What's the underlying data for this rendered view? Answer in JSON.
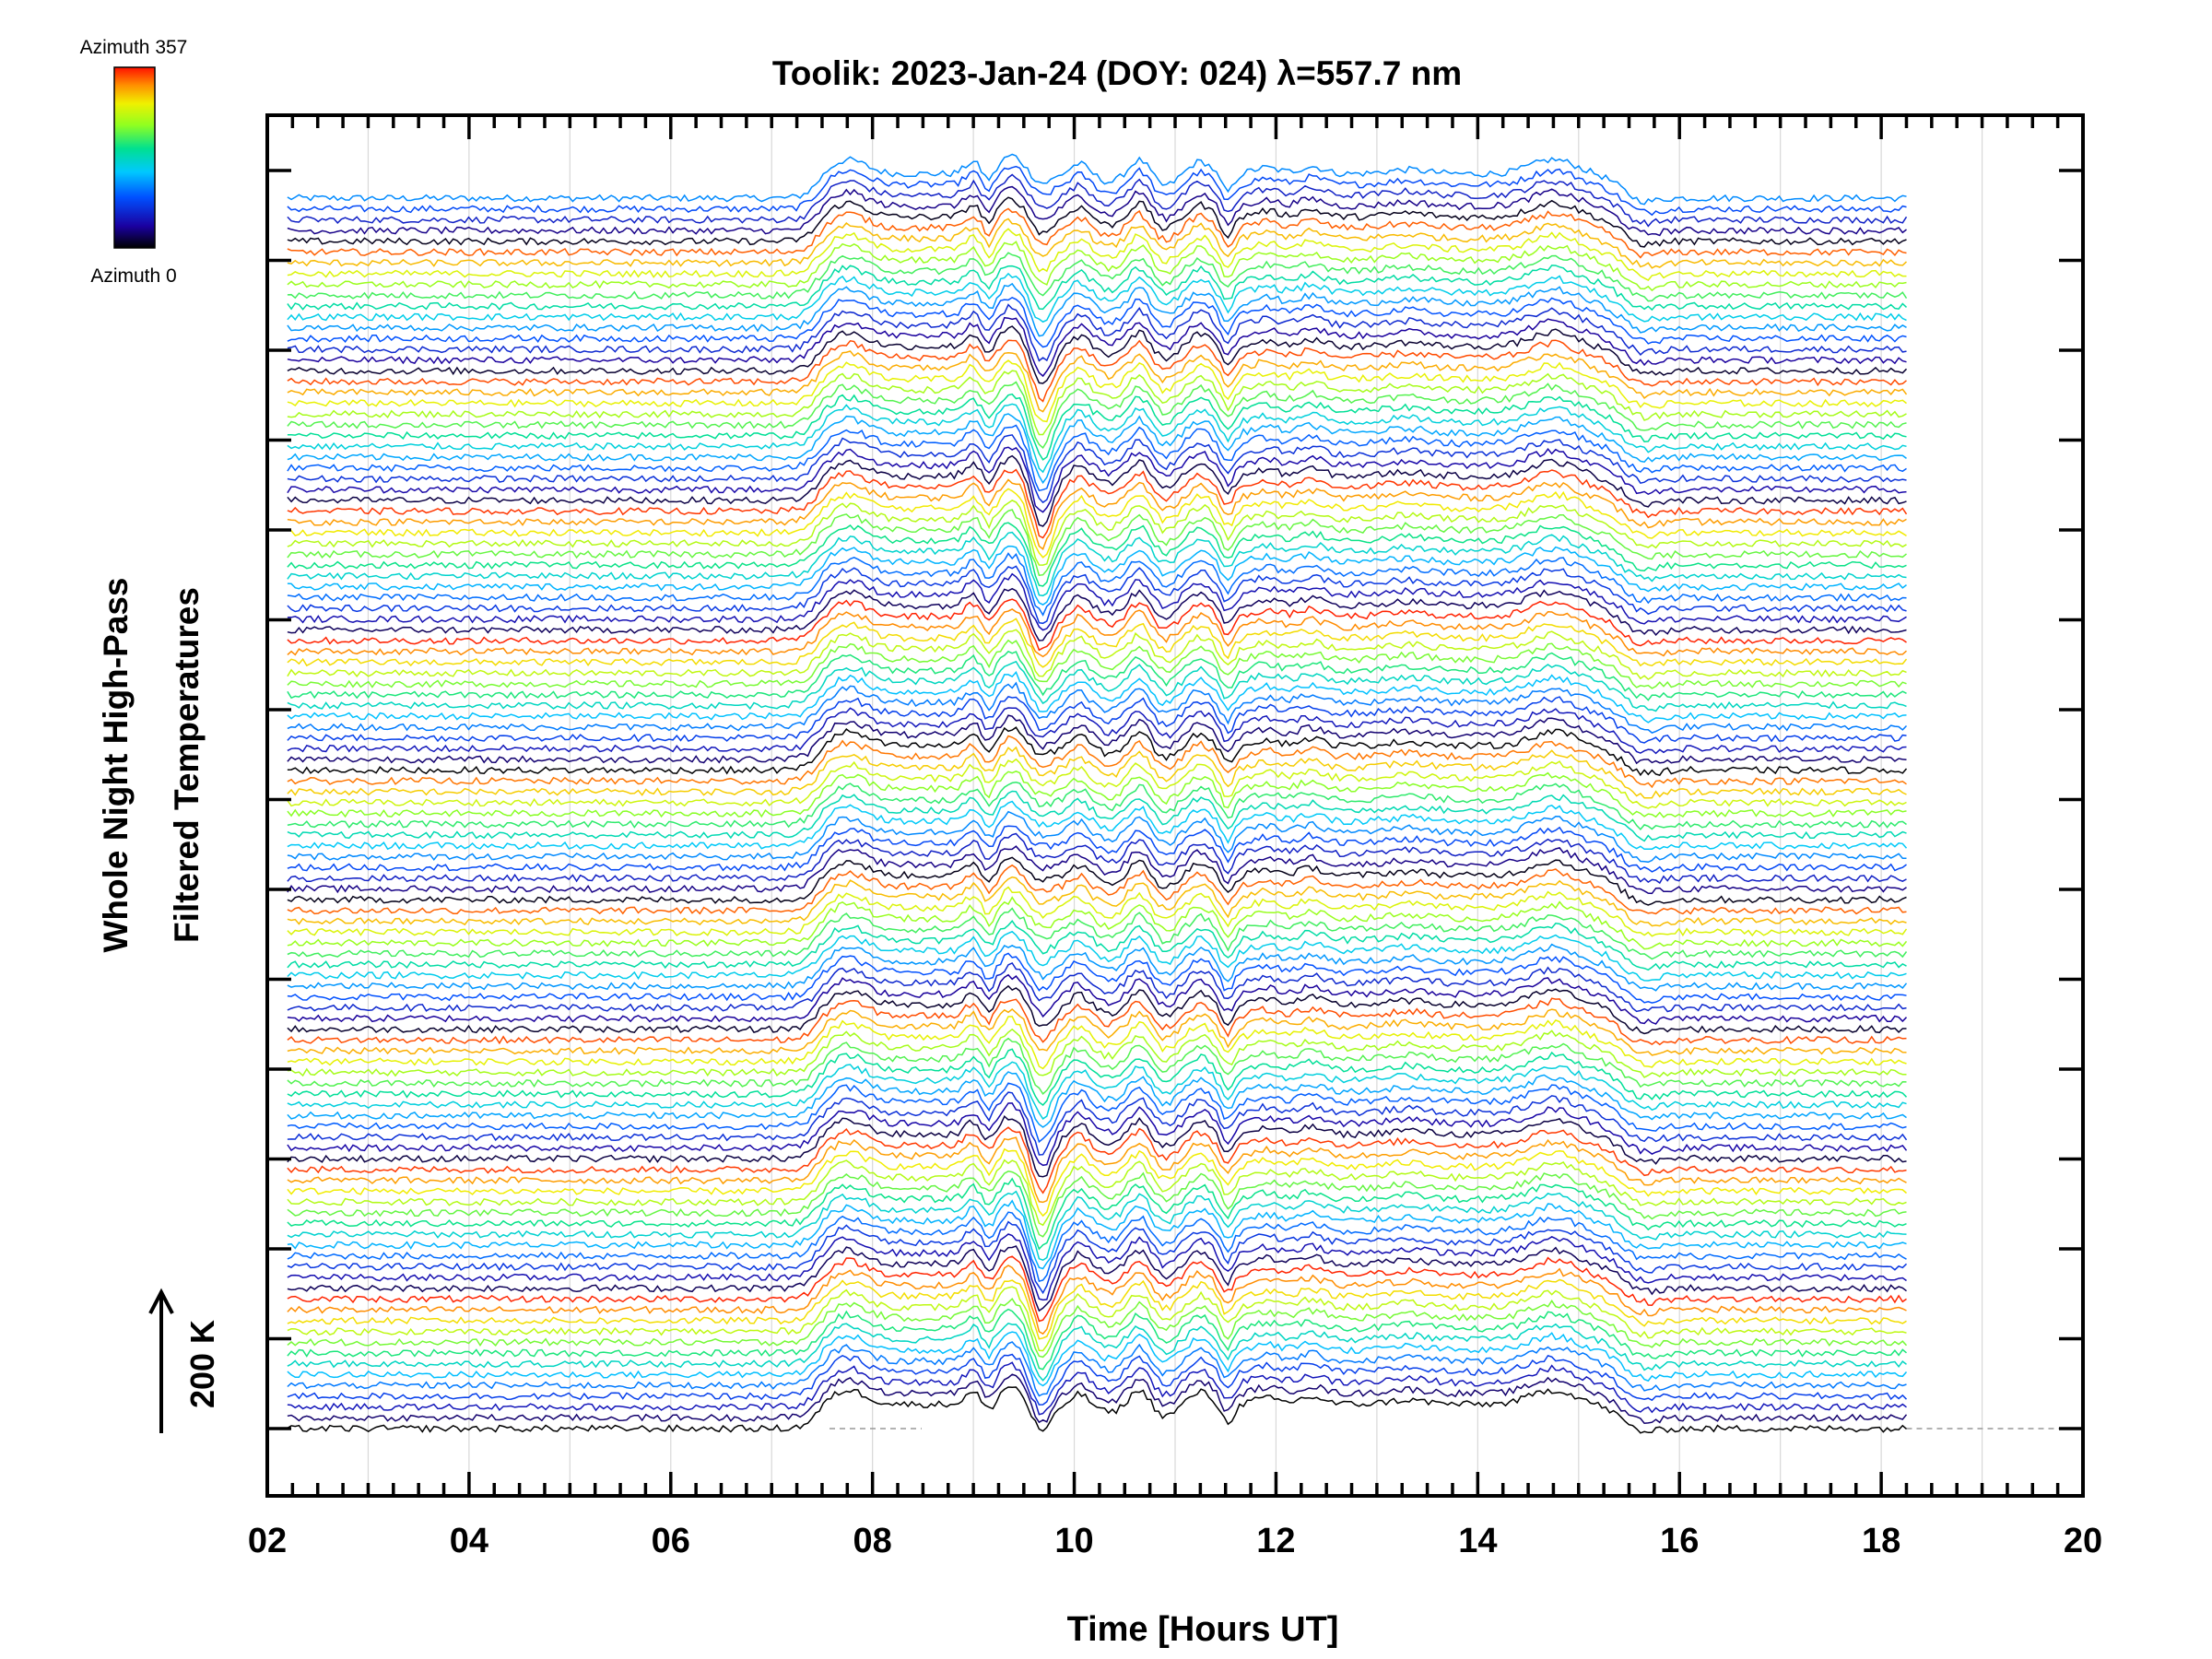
{
  "chart_data": {
    "type": "line",
    "title": "Toolik: 2023-Jan-24 (DOY: 024) λ=557.7 nm",
    "xlabel": "Time [Hours UT]",
    "ylabel_line1": "Whole Night High-Pass",
    "ylabel_line2": "Filtered Temperatures",
    "xlim": [
      2,
      20
    ],
    "x_tick_labels": [
      "02",
      "04",
      "06",
      "08",
      "10",
      "12",
      "14",
      "16",
      "18",
      "20"
    ],
    "data_x_range": [
      2.2,
      18.25
    ],
    "scale_bar_label": "200 K",
    "scale_bar_value": 200,
    "colorbar": {
      "top_label": "Azimuth 357",
      "bottom_label": "Azimuth 0",
      "min": 0,
      "max": 357,
      "colormap": "rainbow"
    },
    "grid": true,
    "num_traces": 115,
    "trace_description": "Stacked high-pass filtered temperature series, one per look direction, colored by azimuth (0-357 deg, cycling rainbow). Common features: step up near 07.4 h, strong dip near 09.7 h, oscillations 09-12 h, bump near 14.7 h, dip near 15.6 h."
  }
}
